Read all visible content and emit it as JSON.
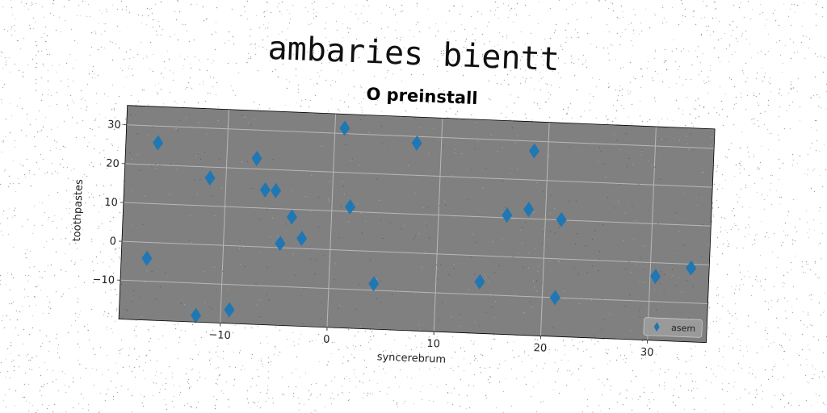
{
  "suptitle": "ambaries bientt",
  "chart_data": {
    "type": "scatter",
    "title": "O preinstall",
    "xlabel": "syncerebrum",
    "ylabel": "toothpastes",
    "xlim": [
      -19.5,
      35.5
    ],
    "ylim": [
      -20,
      35
    ],
    "xticks": [
      -10,
      0,
      10,
      20,
      30
    ],
    "yticks": [
      -10,
      0,
      10,
      20,
      30
    ],
    "xtick_labels": [
      "−10",
      "0",
      "10",
      "20",
      "30"
    ],
    "ytick_labels": [
      "−10",
      "0",
      "10",
      "20",
      "30"
    ],
    "grid": true,
    "legend_position": "lower-right",
    "background": "#808080",
    "series": [
      {
        "name": "asem",
        "marker": "thin-diamond",
        "color": "#1f77b4",
        "x": [
          -16.5,
          -17.1,
          -11.5,
          -12.3,
          -9.2,
          -7.2,
          -6.3,
          -5.3,
          -4.7,
          -3.7,
          -2.7,
          0.9,
          1.7,
          4.2,
          7.7,
          14.1,
          16.4,
          18.4,
          18.7,
          21.2,
          21.5,
          30.5,
          33.8
        ],
        "y": [
          25.7,
          -4.1,
          17.2,
          -18.3,
          -16.5,
          22.7,
          14.7,
          14.6,
          1.1,
          8.0,
          2.6,
          31.4,
          11.2,
          -8.3,
          28.3,
          -6.7,
          10.7,
          12.4,
          27.5,
          -10.0,
          10.1,
          -3.5,
          -1.0
        ]
      }
    ]
  }
}
